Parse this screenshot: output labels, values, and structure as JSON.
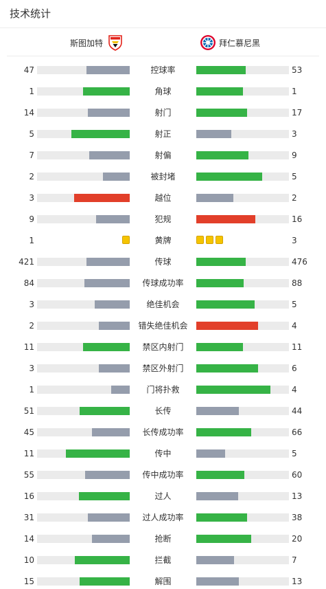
{
  "page": {
    "title": "技术统计"
  },
  "teams": {
    "home": "斯图加特",
    "away": "拜仁慕尼黑"
  },
  "colors": {
    "green": "#36b346",
    "gray": "#959dac",
    "red": "#e23f2a",
    "track": "#ebebeb",
    "yellow": "#f5c400"
  },
  "stats": [
    {
      "label": "控球率",
      "home": "47",
      "away": "53",
      "home_fill": 0.47,
      "away_fill": 0.53,
      "home_color": "gray",
      "away_color": "green"
    },
    {
      "label": "角球",
      "home": "1",
      "away": "1",
      "home_fill": 0.5,
      "away_fill": 0.5,
      "home_color": "green",
      "away_color": "green"
    },
    {
      "label": "射门",
      "home": "14",
      "away": "17",
      "home_fill": 0.45,
      "away_fill": 0.55,
      "home_color": "gray",
      "away_color": "green"
    },
    {
      "label": "射正",
      "home": "5",
      "away": "3",
      "home_fill": 0.63,
      "away_fill": 0.38,
      "home_color": "green",
      "away_color": "gray"
    },
    {
      "label": "射偏",
      "home": "7",
      "away": "9",
      "home_fill": 0.44,
      "away_fill": 0.56,
      "home_color": "gray",
      "away_color": "green"
    },
    {
      "label": "被封堵",
      "home": "2",
      "away": "5",
      "home_fill": 0.29,
      "away_fill": 0.71,
      "home_color": "gray",
      "away_color": "green"
    },
    {
      "label": "越位",
      "home": "3",
      "away": "2",
      "home_fill": 0.6,
      "away_fill": 0.4,
      "home_color": "red",
      "away_color": "gray"
    },
    {
      "label": "犯规",
      "home": "9",
      "away": "16",
      "home_fill": 0.36,
      "away_fill": 0.64,
      "home_color": "gray",
      "away_color": "red"
    },
    {
      "label": "黄牌",
      "home": "1",
      "away": "3",
      "home_cards": 1,
      "away_cards": 3
    },
    {
      "label": "传球",
      "home": "421",
      "away": "476",
      "home_fill": 0.47,
      "away_fill": 0.53,
      "home_color": "gray",
      "away_color": "green"
    },
    {
      "label": "传球成功率",
      "home": "84",
      "away": "88",
      "home_fill": 0.49,
      "away_fill": 0.51,
      "home_color": "gray",
      "away_color": "green"
    },
    {
      "label": "绝佳机会",
      "home": "3",
      "away": "5",
      "home_fill": 0.38,
      "away_fill": 0.63,
      "home_color": "gray",
      "away_color": "green"
    },
    {
      "label": "错失绝佳机会",
      "home": "2",
      "away": "4",
      "home_fill": 0.33,
      "away_fill": 0.67,
      "home_color": "gray",
      "away_color": "red"
    },
    {
      "label": "禁区内射门",
      "home": "11",
      "away": "11",
      "home_fill": 0.5,
      "away_fill": 0.5,
      "home_color": "green",
      "away_color": "green"
    },
    {
      "label": "禁区外射门",
      "home": "3",
      "away": "6",
      "home_fill": 0.33,
      "away_fill": 0.67,
      "home_color": "gray",
      "away_color": "green"
    },
    {
      "label": "门将扑救",
      "home": "1",
      "away": "4",
      "home_fill": 0.2,
      "away_fill": 0.8,
      "home_color": "gray",
      "away_color": "green"
    },
    {
      "label": "长传",
      "home": "51",
      "away": "44",
      "home_fill": 0.54,
      "away_fill": 0.46,
      "home_color": "green",
      "away_color": "gray"
    },
    {
      "label": "长传成功率",
      "home": "45",
      "away": "66",
      "home_fill": 0.41,
      "away_fill": 0.59,
      "home_color": "gray",
      "away_color": "green"
    },
    {
      "label": "传中",
      "home": "11",
      "away": "5",
      "home_fill": 0.69,
      "away_fill": 0.31,
      "home_color": "green",
      "away_color": "gray"
    },
    {
      "label": "传中成功率",
      "home": "55",
      "away": "60",
      "home_fill": 0.48,
      "away_fill": 0.52,
      "home_color": "gray",
      "away_color": "green"
    },
    {
      "label": "过人",
      "home": "16",
      "away": "13",
      "home_fill": 0.55,
      "away_fill": 0.45,
      "home_color": "green",
      "away_color": "gray"
    },
    {
      "label": "过人成功率",
      "home": "31",
      "away": "38",
      "home_fill": 0.45,
      "away_fill": 0.55,
      "home_color": "gray",
      "away_color": "green"
    },
    {
      "label": "抢断",
      "home": "14",
      "away": "20",
      "home_fill": 0.41,
      "away_fill": 0.59,
      "home_color": "gray",
      "away_color": "green"
    },
    {
      "label": "拦截",
      "home": "10",
      "away": "7",
      "home_fill": 0.59,
      "away_fill": 0.41,
      "home_color": "green",
      "away_color": "gray"
    },
    {
      "label": "解围",
      "home": "15",
      "away": "13",
      "home_fill": 0.54,
      "away_fill": 0.46,
      "home_color": "green",
      "away_color": "gray"
    }
  ]
}
